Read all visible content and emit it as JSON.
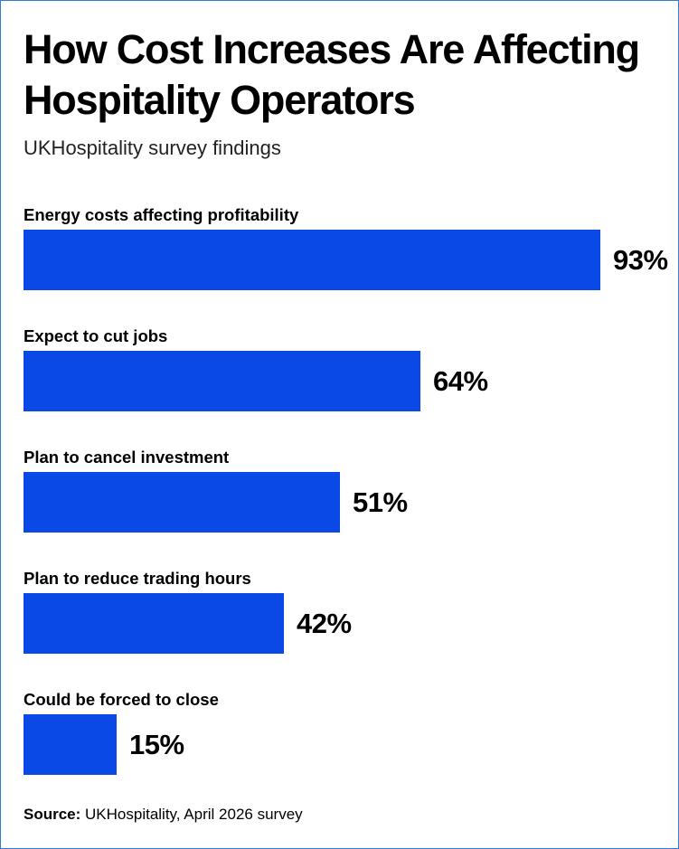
{
  "chart_data": {
    "type": "bar",
    "orientation": "horizontal",
    "title": "How Cost Increases Are Affecting Hospitality Operators",
    "subtitle": "UKHospitality survey findings",
    "categories": [
      "Energy costs affecting profitability",
      "Expect to cut jobs",
      "Plan to cancel investment",
      "Plan to reduce trading hours",
      "Could be forced to close"
    ],
    "values": [
      93,
      64,
      51,
      42,
      15
    ],
    "value_labels": [
      "93%",
      "64%",
      "51%",
      "42%",
      "15%"
    ],
    "unit": "%",
    "xlim": [
      0,
      100
    ],
    "grid": false,
    "legend": "none",
    "bar_color": "#0a49e6"
  },
  "source": {
    "label": "Source:",
    "text": " UKHospitality, April 2026 survey"
  }
}
